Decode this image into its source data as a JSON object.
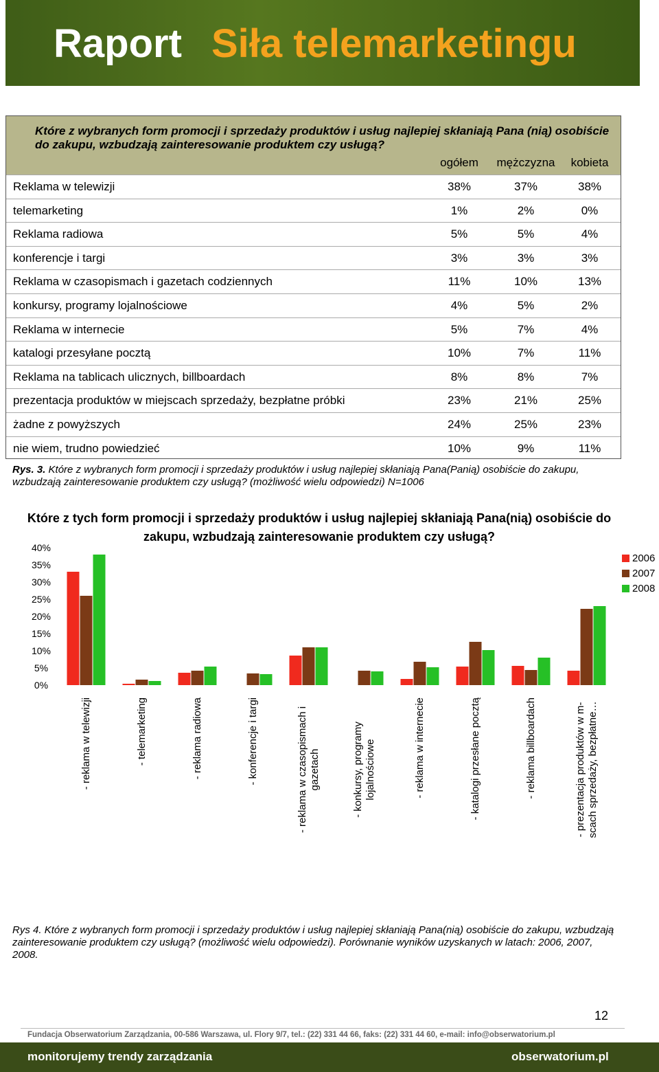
{
  "header": {
    "title": "Raport",
    "subtitle": "Siła telemarketingu"
  },
  "table": {
    "title": "Które z wybranych form promocji i sprzedaży produktów i usług najlepiej skłaniają Pana (nią) osobiście do zakupu, wzbudzają zainteresowanie produktem czy usługą?",
    "columns": [
      "ogółem",
      "mężczyzna",
      "kobieta"
    ],
    "rows": [
      [
        "Reklama w telewizji",
        "38%",
        "37%",
        "38%"
      ],
      [
        "telemarketing",
        "1%",
        "2%",
        "0%"
      ],
      [
        "Reklama radiowa",
        "5%",
        "5%",
        "4%"
      ],
      [
        "konferencje i targi",
        "3%",
        "3%",
        "3%"
      ],
      [
        "Reklama w czasopismach i gazetach codziennych",
        "11%",
        "10%",
        "13%"
      ],
      [
        "konkursy, programy lojalnościowe",
        "4%",
        "5%",
        "2%"
      ],
      [
        "Reklama w internecie",
        "5%",
        "7%",
        "4%"
      ],
      [
        "katalogi przesyłane pocztą",
        "10%",
        "7%",
        "11%"
      ],
      [
        "Reklama na tablicach ulicznych, billboardach",
        "8%",
        "8%",
        "7%"
      ],
      [
        "prezentacja produktów w miejscach sprzedaży, bezpłatne próbki",
        "23%",
        "21%",
        "25%"
      ],
      [
        "żadne z powyższych",
        "24%",
        "25%",
        "23%"
      ],
      [
        "nie wiem, trudno powiedzieć",
        "10%",
        "9%",
        "11%"
      ]
    ]
  },
  "caption1": {
    "label": "Rys. 3.",
    "text": "Które z wybranych form promocji i sprzedaży produktów i usług najlepiej skłaniają Pana(Panią) osobiście do zakupu, wzbudzają zainteresowanie produktem czy usługą? (możliwość wielu odpowiedzi) N=1006"
  },
  "chart_data": {
    "type": "bar",
    "title": "Które z tych form promocji i sprzedaży produktów i usług najlepiej skłaniają Pana(nią) osobiście do zakupu, wzbudzają zainteresowanie produktem czy usługą?",
    "categories": [
      "- reklama w telewizji",
      "- telemarketing",
      "- reklama radiowa",
      "- konferencje i targi",
      "- reklama w czasopismach i gazetach",
      "- konkursy, programy lojalnościowe",
      "- reklama w internecie",
      "- katalogi przesłane pocztą",
      "- reklama billboardach",
      "- prezentacja produktów w m-scach sprzedaży, bezpłatne…"
    ],
    "series": [
      {
        "name": "2006",
        "color": "#f02a1e",
        "values": [
          33,
          0.4,
          3.6,
          null,
          8.6,
          null,
          1.8,
          5.4,
          5.6,
          4.2
        ]
      },
      {
        "name": "2007",
        "color": "#7b3a16",
        "values": [
          26,
          1.6,
          4.2,
          3.4,
          11,
          4.2,
          6.8,
          12.6,
          4.4,
          22.2
        ]
      },
      {
        "name": "2008",
        "color": "#26c026",
        "values": [
          38,
          1.2,
          5.4,
          3.2,
          11,
          4,
          5.2,
          10.2,
          8,
          23
        ]
      }
    ],
    "ylim": [
      0,
      40
    ],
    "yticks": [
      {
        "value": 0,
        "label": "0%"
      },
      {
        "value": 5,
        "label": "5%"
      },
      {
        "value": 10,
        "label": "10%"
      },
      {
        "value": 15,
        "label": "15%"
      },
      {
        "value": 20,
        "label": "20%"
      },
      {
        "value": 25,
        "label": "25%"
      },
      {
        "value": 30,
        "label": "30%"
      },
      {
        "value": 35,
        "label": "35%"
      },
      {
        "value": 40,
        "label": "40%"
      }
    ],
    "grid": false,
    "legend": "right"
  },
  "caption2": {
    "label": "Rys 4.",
    "text": "Które z wybranych form promocji i sprzedaży produktów i usług najlepiej skłaniają Pana(nią) osobiście do zakupu, wzbudzają zainteresowanie produktem czy usługą? (możliwość wielu odpowiedzi). Porównanie wyników uzyskanych w latach: 2006, 2007, 2008."
  },
  "page_number": "12",
  "footer": {
    "address": "Fundacja Obserwatorium Zarządzania, 00-586 Warszawa, ul. Flory 9/7, tel.: (22) 331 44 66, faks: (22) 331 44 60, e-mail: info@obserwatorium.pl",
    "slogan": "monitorujemy trendy zarządzania",
    "site": "obserwatorium.pl"
  }
}
